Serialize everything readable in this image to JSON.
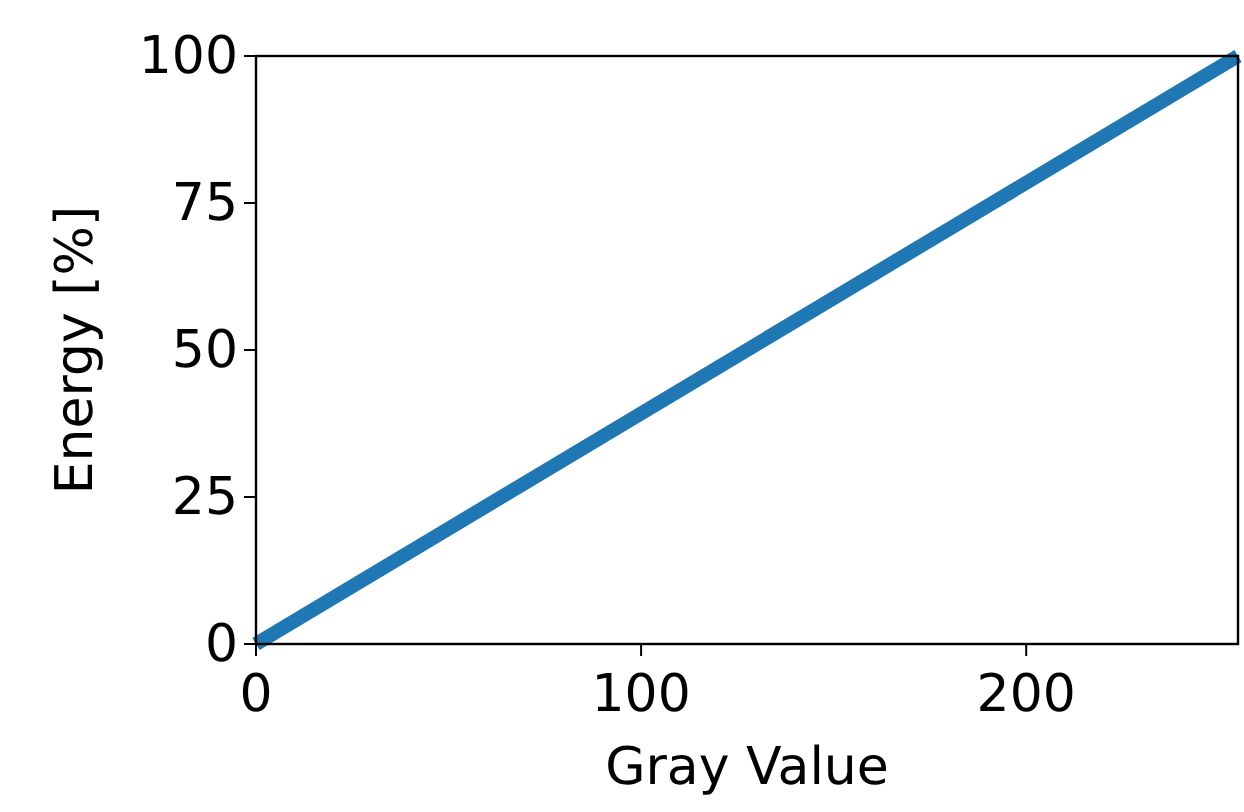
{
  "chart_data": {
    "type": "line",
    "xlabel": "Gray Value",
    "ylabel": "Energy [%]",
    "x": [
      0,
      255
    ],
    "series": [
      {
        "color": "#1f77b4",
        "values": [
          0,
          100
        ]
      }
    ],
    "xlim": [
      0,
      255
    ],
    "xticks": [
      0,
      100,
      200
    ],
    "ylim": [
      0,
      100
    ],
    "yticks": [
      0,
      25,
      50,
      75,
      100
    ],
    "marker": "none",
    "line_style": "solid"
  }
}
